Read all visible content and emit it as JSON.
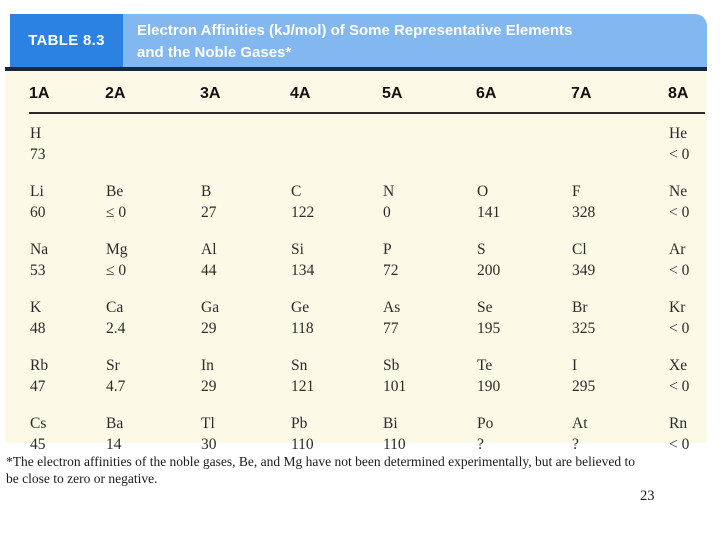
{
  "header": {
    "table_label": "TABLE 8.3",
    "title_line1": "Electron Affinities (kJ/mol) of Some Representative Elements",
    "title_line2": "and the Noble Gases*"
  },
  "colors": {
    "banner_dark_blue": "#2b82e2",
    "banner_light_blue": "#83b7f0",
    "header_rule_navy": "#18273a",
    "table_background_cream": "#fcf9e6"
  },
  "chart_data": {
    "type": "table",
    "columns": [
      "1A",
      "2A",
      "3A",
      "4A",
      "5A",
      "6A",
      "7A",
      "8A"
    ],
    "rows": [
      {
        "symbols": [
          "H",
          "",
          "",
          "",
          "",
          "",
          "",
          "He"
        ],
        "values": [
          "73",
          "",
          "",
          "",
          "",
          "",
          "",
          "< 0"
        ]
      },
      {
        "symbols": [
          "Li",
          "Be",
          "B",
          "C",
          "N",
          "O",
          "F",
          "Ne"
        ],
        "values": [
          "60",
          "≤ 0",
          "27",
          "122",
          "0",
          "141",
          "328",
          "< 0"
        ]
      },
      {
        "symbols": [
          "Na",
          "Mg",
          "Al",
          "Si",
          "P",
          "S",
          "Cl",
          "Ar"
        ],
        "values": [
          "53",
          "≤ 0",
          "44",
          "134",
          "72",
          "200",
          "349",
          "< 0"
        ]
      },
      {
        "symbols": [
          "K",
          "Ca",
          "Ga",
          "Ge",
          "As",
          "Se",
          "Br",
          "Kr"
        ],
        "values": [
          "48",
          "2.4",
          "29",
          "118",
          "77",
          "195",
          "325",
          "< 0"
        ]
      },
      {
        "symbols": [
          "Rb",
          "Sr",
          "In",
          "Sn",
          "Sb",
          "Te",
          "I",
          "Xe"
        ],
        "values": [
          "47",
          "4.7",
          "29",
          "121",
          "101",
          "190",
          "295",
          "< 0"
        ]
      },
      {
        "symbols": [
          "Cs",
          "Ba",
          "Tl",
          "Pb",
          "Bi",
          "Po",
          "At",
          "Rn"
        ],
        "values": [
          "45",
          "14",
          "30",
          "110",
          "110",
          "?",
          "?",
          "< 0"
        ]
      }
    ]
  },
  "footnote": {
    "line1": "*The electron affinities of the noble gases, Be, and Mg have not been determined experimentally, but are believed to",
    "line2": "be close to zero or negative."
  },
  "page_number": "23"
}
